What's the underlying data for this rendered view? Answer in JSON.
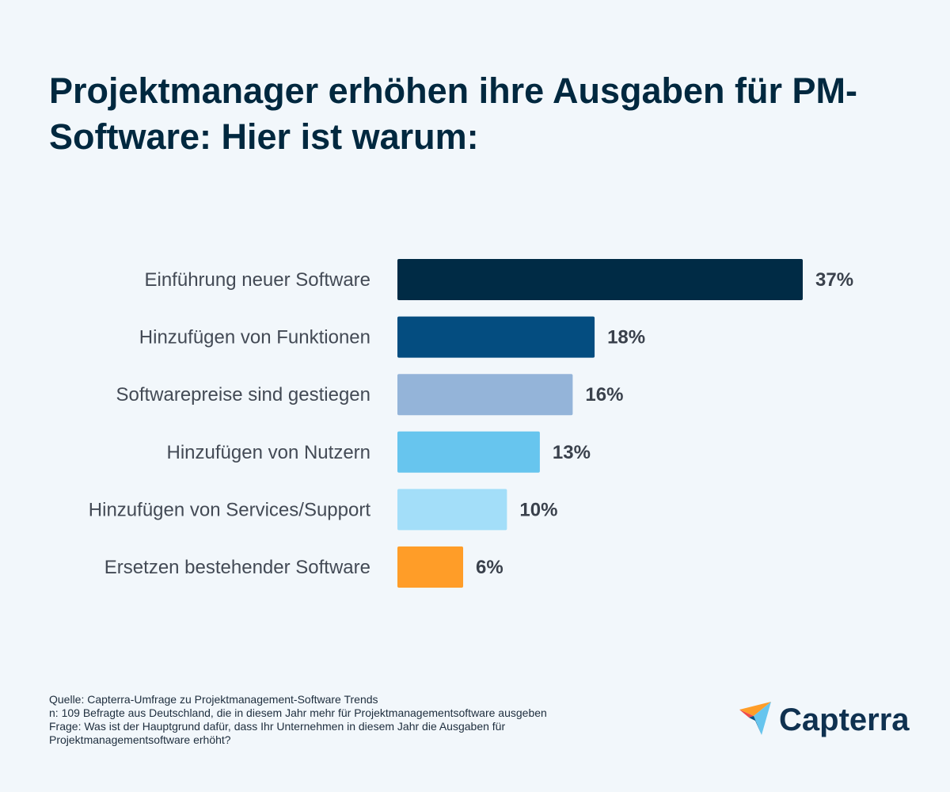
{
  "chart_data": {
    "type": "bar",
    "orientation": "horizontal",
    "title": "Projektmanager erhöhen ihre Ausgaben für PM-Software: Hier ist warum:",
    "categories": [
      "Einführung neuer Software",
      "Hinzufügen von Funktionen",
      "Softwarepreise sind gestiegen",
      "Hinzufügen von Nutzern",
      "Hinzufügen von Services/Support",
      "Ersetzen bestehender Software"
    ],
    "values": [
      37,
      18,
      16,
      13,
      10,
      6
    ],
    "value_labels": [
      "37%",
      "18%",
      "16%",
      "13%",
      "10%",
      "6%"
    ],
    "colors": [
      "#002b45",
      "#044d80",
      "#94b4d9",
      "#67c5ee",
      "#a3def9",
      "#ff9d28"
    ],
    "xlabel": "",
    "ylabel": "",
    "grid": false,
    "unit": "%"
  },
  "footer": {
    "source": "Quelle: Capterra-Umfrage zu Projektmanagement-Software Trends",
    "sample": "n: 109 Befragte aus Deutschland, die in diesem Jahr mehr für Projektmanagementsoftware ausgeben",
    "question_1": "Frage: Was ist der Hauptgrund dafür, dass Ihr Unternehmen in diesem Jahr die Ausgaben für",
    "question_2": "Projektmanagementsoftware erhöht?"
  },
  "logo": {
    "text": "Capterra",
    "colors": [
      "#ff9d28",
      "#ef4b4b",
      "#67c5ee",
      "#044d80"
    ]
  }
}
